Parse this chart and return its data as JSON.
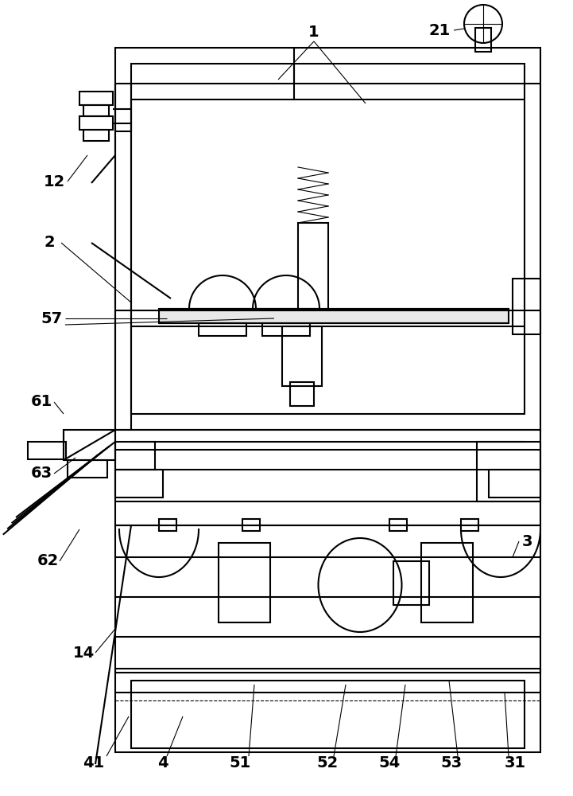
{
  "bg_color": "#ffffff",
  "lc": "#000000",
  "lw": 1.5,
  "lt": 0.8,
  "fs": 14,
  "fw": "bold"
}
